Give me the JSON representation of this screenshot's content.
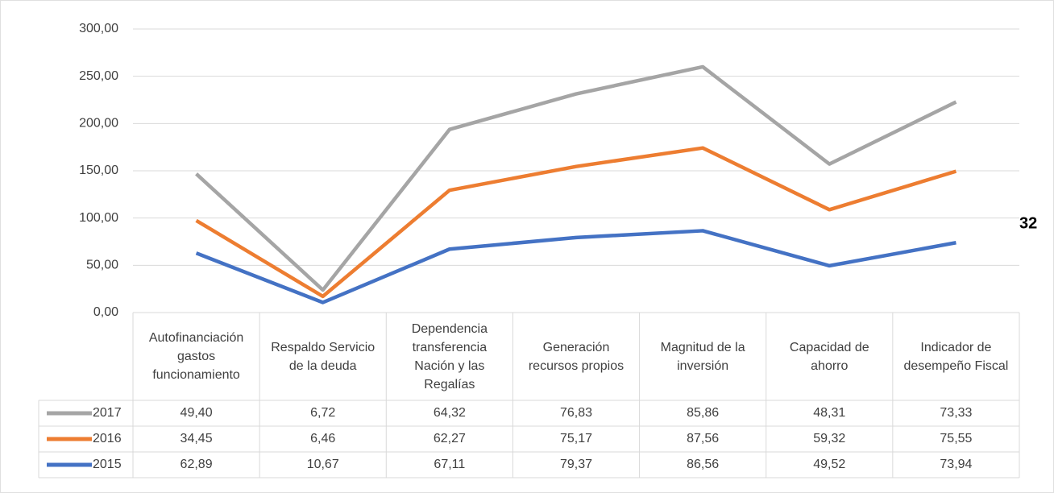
{
  "chart_data": {
    "type": "line",
    "stacked": true,
    "categories": [
      "Autofinanciación gastos funcionamiento",
      "Respaldo Servicio de la deuda",
      "Dependencia transferencia Nación y las Regalías",
      "Generación recursos propios",
      "Magnitud de la inversión",
      "Capacidad de ahorro",
      "Indicador de desempeño Fiscal"
    ],
    "series": [
      {
        "name": "2017",
        "color": "#a5a5a5",
        "values": [
          49.4,
          6.72,
          64.32,
          76.83,
          85.86,
          48.31,
          73.33
        ],
        "value_labels": [
          "49,40",
          "6,72",
          "64,32",
          "76,83",
          "85,86",
          "48,31",
          "73,33"
        ]
      },
      {
        "name": "2016",
        "color": "#ed7d31",
        "values": [
          34.45,
          6.46,
          62.27,
          75.17,
          87.56,
          59.32,
          75.55
        ],
        "value_labels": [
          "34,45",
          "6,46",
          "62,27",
          "75,17",
          "87,56",
          "59,32",
          "75,55"
        ]
      },
      {
        "name": "2015",
        "color": "#4472c4",
        "values": [
          62.89,
          10.67,
          67.11,
          79.37,
          86.56,
          49.52,
          73.94
        ],
        "value_labels": [
          "62,89",
          "10,67",
          "67,11",
          "79,37",
          "86,56",
          "49,52",
          "73,94"
        ]
      }
    ],
    "ylim": [
      0,
      300
    ],
    "yticks": [
      {
        "value": 0,
        "label": "0,00"
      },
      {
        "value": 50,
        "label": "50,00"
      },
      {
        "value": 100,
        "label": "100,00"
      },
      {
        "value": 150,
        "label": "150,00"
      },
      {
        "value": 200,
        "label": "200,00"
      },
      {
        "value": 250,
        "label": "250,00"
      },
      {
        "value": 300,
        "label": "300,00"
      }
    ],
    "grid": true,
    "annotation": "32"
  }
}
